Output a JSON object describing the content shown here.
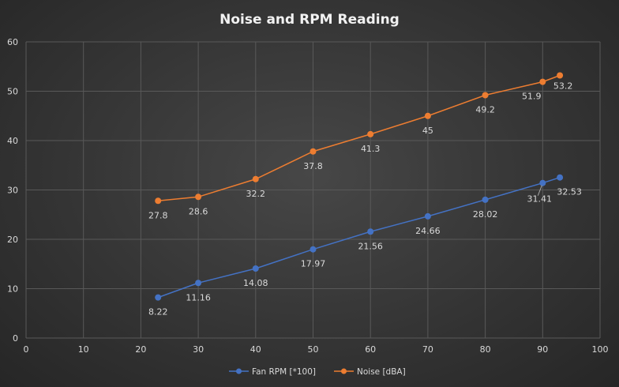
{
  "chart_data": {
    "type": "scatter",
    "title": "Noise and RPM Reading",
    "xlabel": "",
    "ylabel": "",
    "xlim": [
      0,
      100
    ],
    "ylim": [
      0,
      60
    ],
    "xticks": [
      0,
      10,
      20,
      30,
      40,
      50,
      60,
      70,
      80,
      90,
      100
    ],
    "yticks": [
      0,
      10,
      20,
      30,
      40,
      50,
      60
    ],
    "grid": true,
    "legend_position": "bottom",
    "x": [
      23,
      30,
      40,
      50,
      60,
      70,
      80,
      90,
      93
    ],
    "series": [
      {
        "name": "Fan RPM [*100]",
        "color": "#4472c4",
        "values": [
          8.22,
          11.16,
          14.08,
          17.97,
          21.56,
          24.66,
          28.02,
          31.41,
          32.53
        ],
        "labels": [
          "8.22",
          "11.16",
          "14.08",
          "17.97",
          "21.56",
          "24.66",
          "28.02",
          "31.41",
          "32.53"
        ]
      },
      {
        "name": "Noise [dBA]",
        "color": "#ed7d31",
        "values": [
          27.8,
          28.6,
          32.2,
          37.8,
          41.3,
          45,
          49.2,
          51.9,
          53.2
        ],
        "labels": [
          "27.8",
          "28.6",
          "32.2",
          "37.8",
          "41.3",
          "45",
          "49.2",
          "51.9",
          "53.2"
        ]
      }
    ]
  }
}
